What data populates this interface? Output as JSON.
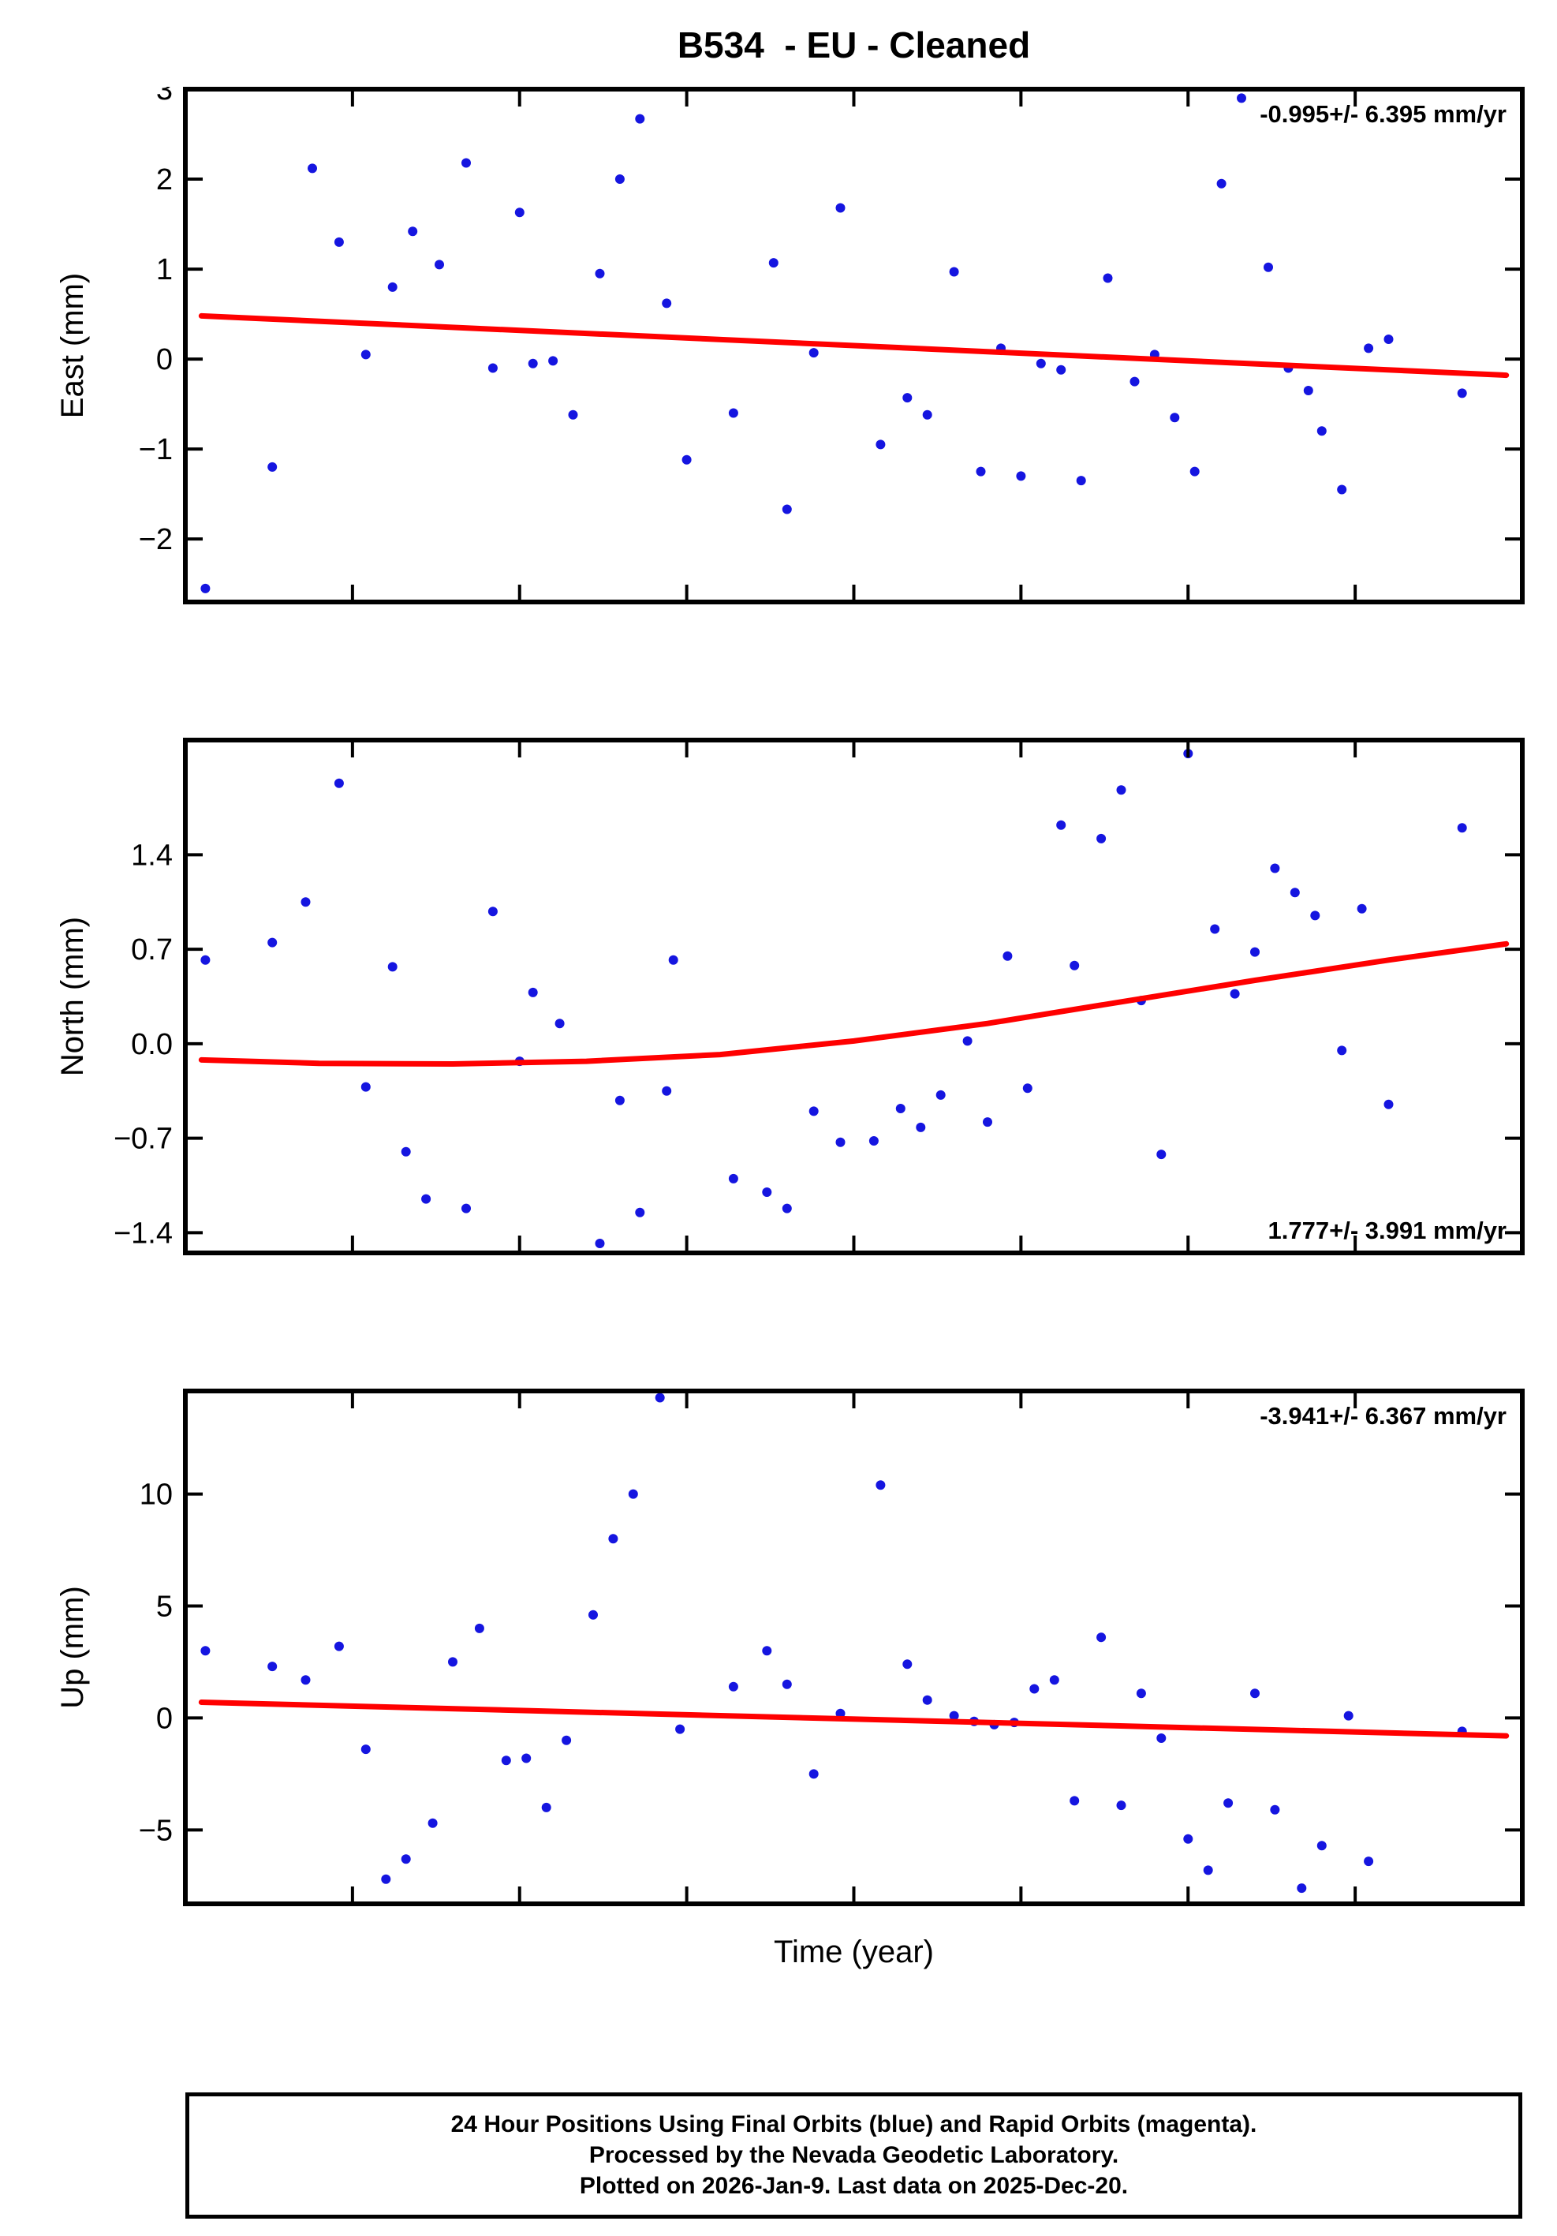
{
  "title": "B534  - EU - Cleaned",
  "xlabel": "Time (year)",
  "caption": {
    "line1": "24 Hour Positions Using Final Orbits (blue) and Rapid Orbits (magenta).",
    "line2": "Processed by the Nevada Geodetic Laboratory.",
    "line3": "Plotted on 2026-Jan-9. Last data on 2025-Dec-20."
  },
  "colors": {
    "points": "#1515e0",
    "trend": "#ff0000",
    "frame": "#000000"
  },
  "chart_data": {
    "type": "scatter",
    "title": "B534  - EU - Cleaned",
    "xlabel": "Time (year)",
    "x_axis_note": "x values are fractions of the plotted time span; no year tick labels are visible in the image",
    "panels": [
      {
        "name": "east",
        "ylabel": "East (mm)",
        "annotation": "-0.995+/- 6.395 mm/yr",
        "annotation_pos": "top-right",
        "ylim": [
          -2.7,
          3.0
        ],
        "yticks": [
          {
            "v": -2,
            "label": "−2"
          },
          {
            "v": -1,
            "label": "−1"
          },
          {
            "v": 0,
            "label": "0"
          },
          {
            "v": 1,
            "label": "1"
          },
          {
            "v": 2,
            "label": "2"
          },
          {
            "v": 3,
            "label": "3"
          }
        ],
        "points": [
          [
            0.015,
            -2.55
          ],
          [
            0.065,
            -1.2
          ],
          [
            0.095,
            2.12
          ],
          [
            0.115,
            1.3
          ],
          [
            0.135,
            0.05
          ],
          [
            0.155,
            0.8
          ],
          [
            0.17,
            1.42
          ],
          [
            0.19,
            1.05
          ],
          [
            0.21,
            2.18
          ],
          [
            0.23,
            -0.1
          ],
          [
            0.25,
            1.63
          ],
          [
            0.26,
            -0.05
          ],
          [
            0.275,
            -0.02
          ],
          [
            0.29,
            -0.62
          ],
          [
            0.31,
            0.95
          ],
          [
            0.325,
            2.0
          ],
          [
            0.34,
            2.67
          ],
          [
            0.36,
            0.62
          ],
          [
            0.375,
            -1.12
          ],
          [
            0.41,
            -0.6
          ],
          [
            0.44,
            1.07
          ],
          [
            0.45,
            -1.67
          ],
          [
            0.47,
            0.07
          ],
          [
            0.49,
            1.68
          ],
          [
            0.52,
            -0.95
          ],
          [
            0.54,
            -0.43
          ],
          [
            0.555,
            -0.62
          ],
          [
            0.575,
            0.97
          ],
          [
            0.595,
            -1.25
          ],
          [
            0.61,
            0.12
          ],
          [
            0.625,
            -1.3
          ],
          [
            0.64,
            -0.05
          ],
          [
            0.655,
            -0.12
          ],
          [
            0.67,
            -1.35
          ],
          [
            0.69,
            0.9
          ],
          [
            0.71,
            -0.25
          ],
          [
            0.725,
            0.05
          ],
          [
            0.74,
            -0.65
          ],
          [
            0.755,
            -1.25
          ],
          [
            0.775,
            1.95
          ],
          [
            0.79,
            2.9
          ],
          [
            0.81,
            1.02
          ],
          [
            0.825,
            -0.1
          ],
          [
            0.84,
            -0.35
          ],
          [
            0.85,
            -0.8
          ],
          [
            0.865,
            -1.45
          ],
          [
            0.885,
            0.12
          ],
          [
            0.9,
            0.22
          ],
          [
            0.955,
            -0.38
          ]
        ],
        "trend": [
          [
            0.012,
            0.48
          ],
          [
            0.988,
            -0.18
          ]
        ]
      },
      {
        "name": "north",
        "ylabel": "North (mm)",
        "annotation": "1.777+/- 3.991 mm/yr",
        "annotation_pos": "bottom-right",
        "ylim": [
          -1.55,
          2.25
        ],
        "yticks": [
          {
            "v": -1.4,
            "label": "−1.4"
          },
          {
            "v": -0.7,
            "label": "−0.7"
          },
          {
            "v": 0.0,
            "label": "0.0"
          },
          {
            "v": 0.7,
            "label": "0.7"
          },
          {
            "v": 1.4,
            "label": "1.4"
          }
        ],
        "points": [
          [
            0.015,
            0.62
          ],
          [
            0.065,
            0.75
          ],
          [
            0.09,
            1.05
          ],
          [
            0.115,
            1.93
          ],
          [
            0.135,
            -0.32
          ],
          [
            0.155,
            0.57
          ],
          [
            0.165,
            -0.8
          ],
          [
            0.18,
            -1.15
          ],
          [
            0.21,
            -1.22
          ],
          [
            0.23,
            0.98
          ],
          [
            0.25,
            -0.13
          ],
          [
            0.26,
            0.38
          ],
          [
            0.28,
            0.15
          ],
          [
            0.31,
            -1.48
          ],
          [
            0.325,
            -0.42
          ],
          [
            0.34,
            -1.25
          ],
          [
            0.36,
            -0.35
          ],
          [
            0.365,
            0.62
          ],
          [
            0.41,
            -1.0
          ],
          [
            0.435,
            -1.1
          ],
          [
            0.45,
            -1.22
          ],
          [
            0.47,
            -0.5
          ],
          [
            0.49,
            -0.73
          ],
          [
            0.515,
            -0.72
          ],
          [
            0.535,
            -0.48
          ],
          [
            0.55,
            -0.62
          ],
          [
            0.565,
            -0.38
          ],
          [
            0.585,
            0.02
          ],
          [
            0.6,
            -0.58
          ],
          [
            0.615,
            0.65
          ],
          [
            0.63,
            -0.33
          ],
          [
            0.655,
            1.62
          ],
          [
            0.665,
            0.58
          ],
          [
            0.685,
            1.52
          ],
          [
            0.7,
            1.88
          ],
          [
            0.715,
            0.32
          ],
          [
            0.73,
            -0.82
          ],
          [
            0.75,
            2.15
          ],
          [
            0.77,
            0.85
          ],
          [
            0.785,
            0.37
          ],
          [
            0.8,
            0.68
          ],
          [
            0.815,
            1.3
          ],
          [
            0.83,
            1.12
          ],
          [
            0.845,
            0.95
          ],
          [
            0.865,
            -0.05
          ],
          [
            0.88,
            1.0
          ],
          [
            0.9,
            -0.45
          ],
          [
            0.955,
            1.6
          ]
        ],
        "trend": [
          [
            0.012,
            -0.12
          ],
          [
            0.1,
            -0.145
          ],
          [
            0.2,
            -0.15
          ],
          [
            0.3,
            -0.13
          ],
          [
            0.4,
            -0.08
          ],
          [
            0.5,
            0.02
          ],
          [
            0.6,
            0.15
          ],
          [
            0.7,
            0.31
          ],
          [
            0.8,
            0.47
          ],
          [
            0.9,
            0.62
          ],
          [
            0.988,
            0.74
          ]
        ]
      },
      {
        "name": "up",
        "ylabel": "Up (mm)",
        "annotation": "-3.941+/- 6.367 mm/yr",
        "annotation_pos": "top-right",
        "ylim": [
          -8.3,
          14.6
        ],
        "yticks": [
          {
            "v": -5,
            "label": "−5"
          },
          {
            "v": 0,
            "label": "0"
          },
          {
            "v": 5,
            "label": "5"
          },
          {
            "v": 10,
            "label": "10"
          }
        ],
        "points": [
          [
            0.015,
            3.0
          ],
          [
            0.065,
            2.3
          ],
          [
            0.09,
            1.7
          ],
          [
            0.115,
            3.2
          ],
          [
            0.135,
            -1.4
          ],
          [
            0.15,
            -7.2
          ],
          [
            0.165,
            -6.3
          ],
          [
            0.185,
            -4.7
          ],
          [
            0.2,
            2.5
          ],
          [
            0.22,
            4.0
          ],
          [
            0.24,
            -1.9
          ],
          [
            0.255,
            -1.8
          ],
          [
            0.27,
            -4.0
          ],
          [
            0.285,
            -1.0
          ],
          [
            0.305,
            4.6
          ],
          [
            0.32,
            8.0
          ],
          [
            0.335,
            10.0
          ],
          [
            0.355,
            14.3
          ],
          [
            0.37,
            -0.5
          ],
          [
            0.41,
            1.4
          ],
          [
            0.435,
            3.0
          ],
          [
            0.45,
            1.5
          ],
          [
            0.47,
            -2.5
          ],
          [
            0.49,
            0.2
          ],
          [
            0.52,
            10.4
          ],
          [
            0.54,
            2.4
          ],
          [
            0.555,
            0.8
          ],
          [
            0.575,
            0.1
          ],
          [
            0.59,
            -0.15
          ],
          [
            0.605,
            -0.3
          ],
          [
            0.62,
            -0.2
          ],
          [
            0.635,
            1.3
          ],
          [
            0.65,
            1.7
          ],
          [
            0.665,
            -3.7
          ],
          [
            0.685,
            3.6
          ],
          [
            0.7,
            -3.9
          ],
          [
            0.715,
            1.1
          ],
          [
            0.73,
            -0.9
          ],
          [
            0.75,
            -5.4
          ],
          [
            0.765,
            -6.8
          ],
          [
            0.78,
            -3.8
          ],
          [
            0.8,
            1.1
          ],
          [
            0.815,
            -4.1
          ],
          [
            0.835,
            -7.6
          ],
          [
            0.85,
            -5.7
          ],
          [
            0.87,
            0.1
          ],
          [
            0.885,
            -6.4
          ],
          [
            0.955,
            -0.6
          ]
        ],
        "trend": [
          [
            0.012,
            0.7
          ],
          [
            0.988,
            -0.8
          ]
        ]
      }
    ]
  }
}
